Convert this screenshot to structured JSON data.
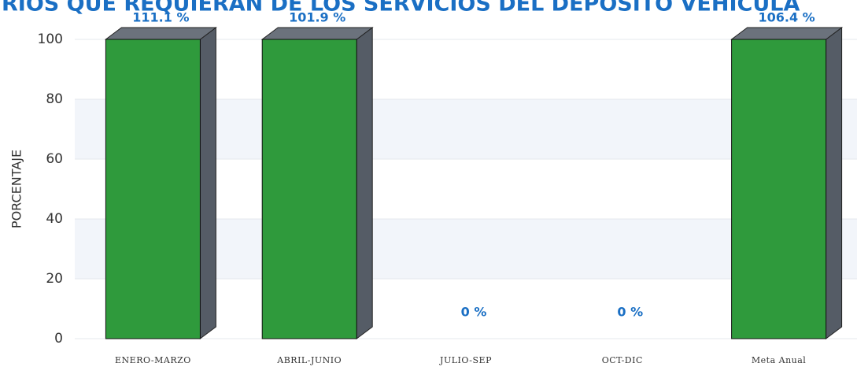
{
  "chart_data": {
    "type": "bar3d",
    "title": "RIOS QUE REQUIERAN DE LOS SERVICIOS DEL DEPOSITO VEHICULA",
    "y_label": "PORCENTAJE",
    "categories": [
      "ENERO-MARZO",
      "ABRIL-JUNIO",
      "JULIO-SEP",
      "OCT-DIC",
      "Meta Anual"
    ],
    "values": [
      111.1,
      101.9,
      0,
      0,
      106.4
    ],
    "value_labels": [
      "111.1 %",
      "101.9 %",
      "0 %",
      "0 %",
      "106.4 %"
    ],
    "color": "#2f9a3c",
    "side_color": "#555c66",
    "label_color": "#1a6fc4",
    "ylim": [
      0,
      100
    ],
    "yticks": [
      0,
      20,
      40,
      60,
      80,
      100
    ],
    "grid": true
  }
}
